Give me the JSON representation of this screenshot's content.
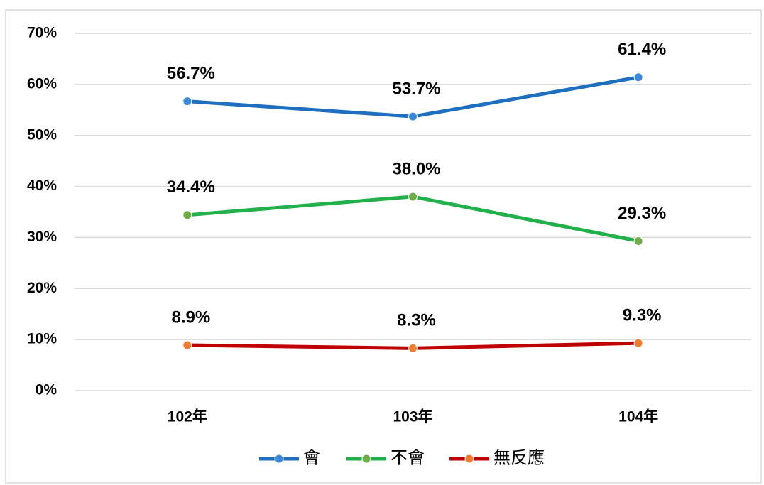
{
  "chart_data": {
    "type": "line",
    "categories": [
      "102年",
      "103年",
      "104年"
    ],
    "series": [
      {
        "name": "會",
        "color": "#1f6fc1",
        "marker_color": "#3b8ad9",
        "values": [
          56.7,
          53.7,
          61.4
        ],
        "value_labels": [
          "56.7%",
          "53.7%",
          "61.4%"
        ]
      },
      {
        "name": "不會",
        "color": "#22b04b",
        "marker_color": "#70ad47",
        "values": [
          34.4,
          38.0,
          29.3
        ],
        "value_labels": [
          "34.4%",
          "38.0%",
          "29.3%"
        ]
      },
      {
        "name": "無反應",
        "color": "#c00000",
        "marker_color": "#ed7d31",
        "values": [
          8.9,
          8.3,
          9.3
        ],
        "value_labels": [
          "8.9%",
          "8.3%",
          "9.3%"
        ]
      }
    ],
    "ylim": [
      0,
      70
    ],
    "yticks": [
      {
        "value": 0,
        "label": "0%"
      },
      {
        "value": 10,
        "label": "10%"
      },
      {
        "value": 20,
        "label": "20%"
      },
      {
        "value": 30,
        "label": "30%"
      },
      {
        "value": 40,
        "label": "40%"
      },
      {
        "value": 50,
        "label": "50%"
      },
      {
        "value": 60,
        "label": "60%"
      },
      {
        "value": 70,
        "label": "70%"
      }
    ],
    "grid": true,
    "legend": "bottom"
  }
}
